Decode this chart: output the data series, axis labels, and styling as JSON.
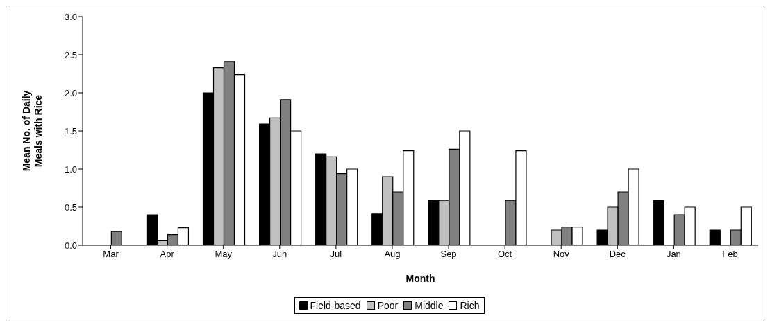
{
  "chart_data": {
    "type": "bar",
    "xlabel": "Month",
    "ylabel": "Mean No. of Daily Meals with Rice",
    "categories": [
      "Mar",
      "Apr",
      "May",
      "Jun",
      "Jul",
      "Aug",
      "Sep",
      "Oct",
      "Nov",
      "Dec",
      "Jan",
      "Feb"
    ],
    "series": [
      {
        "name": "Field-based",
        "color": "#000000",
        "values": [
          null,
          0.4,
          2.0,
          1.59,
          1.2,
          0.41,
          0.59,
          null,
          null,
          0.2,
          0.59,
          0.2
        ]
      },
      {
        "name": "Poor",
        "color": "#c0c0c0",
        "values": [
          null,
          0.06,
          2.33,
          1.67,
          1.16,
          0.9,
          0.59,
          null,
          0.2,
          0.5,
          null,
          null
        ]
      },
      {
        "name": "Middle",
        "color": "#808080",
        "values": [
          0.18,
          0.14,
          2.41,
          1.91,
          0.94,
          0.7,
          1.26,
          0.59,
          0.24,
          0.7,
          0.4,
          0.2
        ]
      },
      {
        "name": "Rich",
        "color": "#ffffff",
        "values": [
          null,
          0.23,
          2.24,
          1.5,
          1.0,
          1.24,
          1.5,
          1.24,
          0.24,
          1.0,
          0.5,
          0.5
        ]
      }
    ],
    "ylim": [
      0,
      3
    ],
    "yticks": [
      {
        "value": 0,
        "label": "0.0"
      },
      {
        "value": 0.5,
        "label": "0.5"
      },
      {
        "value": 1,
        "label": "1.0"
      },
      {
        "value": 1.5,
        "label": "1.5"
      },
      {
        "value": 2,
        "label": "2.0"
      },
      {
        "value": 2.5,
        "label": "2.5"
      },
      {
        "value": 3,
        "label": "3.0"
      }
    ],
    "legend": "bottom"
  }
}
